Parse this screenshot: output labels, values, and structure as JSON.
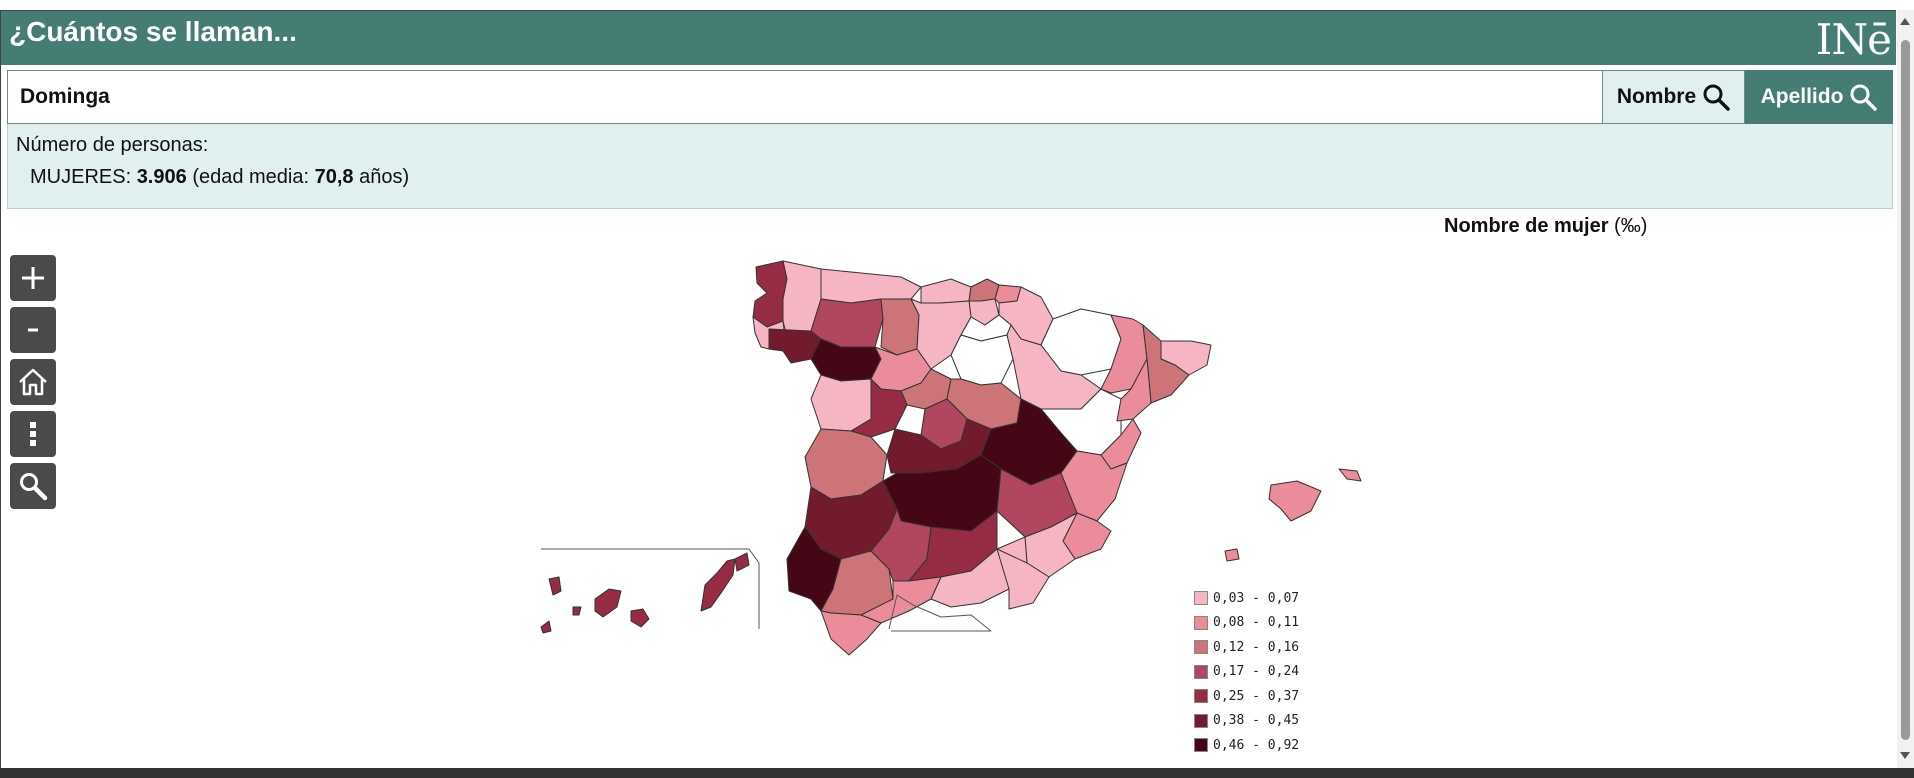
{
  "header": {
    "title": "¿Cuántos se llaman...",
    "logo_text": "INē"
  },
  "search": {
    "value": "Dominga",
    "nombre_label": "Nombre",
    "apellido_label": "Apellido"
  },
  "info": {
    "line1": "Número de personas:",
    "group_label": "MUJERES:",
    "count": "3.906",
    "age_prefix": "(edad media:",
    "age_value": "70,8",
    "age_suffix": "años)"
  },
  "map": {
    "title": "Nombre de mujer",
    "unit": "(‰)",
    "legend": [
      {
        "label": "0,03 - 0,07",
        "color": "#f6b5c2"
      },
      {
        "label": "0,08 - 0,11",
        "color": "#ea8c9a"
      },
      {
        "label": "0,12 - 0,16",
        "color": "#cc7477"
      },
      {
        "label": "0,17 - 0,24",
        "color": "#b0475e"
      },
      {
        "label": "0,25 - 0,37",
        "color": "#952c44"
      },
      {
        "label": "0,38 - 0,45",
        "color": "#711b2d"
      },
      {
        "label": "0,46 - 0,92",
        "color": "#450715"
      }
    ]
  },
  "tools": [
    "zoom-in-icon",
    "zoom-out-icon",
    "home-icon",
    "more-icon",
    "search-icon"
  ]
}
